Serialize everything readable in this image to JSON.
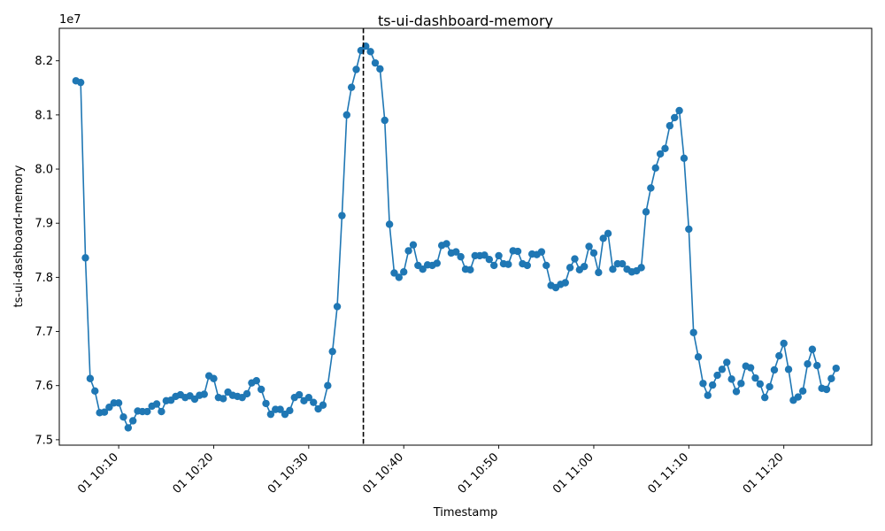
{
  "chart_data": {
    "type": "line",
    "title": "ts-ui-dashboard-memory",
    "xlabel": "Timestamp",
    "ylabel": "ts-ui-dashboard-memory",
    "offset_text": "1e7",
    "x_tick_labels": [
      "01 10:10",
      "01 10:20",
      "01 10:30",
      "01 10:40",
      "01 10:50",
      "01 11:00",
      "01 11:10",
      "01 11:20"
    ],
    "x_start": "10:05:30",
    "x_step_seconds": 30,
    "xlim": [
      "10:03:45",
      "11:29:15"
    ],
    "ylim": [
      7.49,
      8.26
    ],
    "yticks": [
      7.5,
      7.6,
      7.7,
      7.8,
      7.9,
      8.0,
      8.1,
      8.2
    ],
    "vline": "10:35:45",
    "color": "#1f77b4",
    "marker": "circle",
    "grid": false,
    "legend": false,
    "series": [
      {
        "values": [
          8.163,
          8.16,
          7.836,
          7.613,
          7.59,
          7.55,
          7.551,
          7.56,
          7.568,
          7.568,
          7.542,
          7.522,
          7.535,
          7.553,
          7.552,
          7.552,
          7.562,
          7.566,
          7.552,
          7.572,
          7.573,
          7.58,
          7.583,
          7.578,
          7.581,
          7.575,
          7.582,
          7.584,
          7.618,
          7.613,
          7.578,
          7.576,
          7.588,
          7.582,
          7.58,
          7.578,
          7.585,
          7.605,
          7.609,
          7.593,
          7.567,
          7.547,
          7.556,
          7.556,
          7.547,
          7.554,
          7.578,
          7.583,
          7.572,
          7.578,
          7.569,
          7.557,
          7.564,
          7.6,
          7.663,
          7.746,
          7.914,
          8.1,
          8.151,
          8.184,
          8.219,
          8.227,
          8.217,
          8.196,
          8.185,
          8.09,
          7.898,
          7.808,
          7.8,
          7.81,
          7.849,
          7.86,
          7.822,
          7.815,
          7.823,
          7.822,
          7.826,
          7.859,
          7.862,
          7.845,
          7.847,
          7.838,
          7.815,
          7.814,
          7.84,
          7.84,
          7.841,
          7.833,
          7.822,
          7.84,
          7.825,
          7.824,
          7.849,
          7.848,
          7.825,
          7.822,
          7.843,
          7.842,
          7.847,
          7.822,
          7.785,
          7.781,
          7.787,
          7.79,
          7.818,
          7.834,
          7.814,
          7.82,
          7.857,
          7.845,
          7.809,
          7.872,
          7.881,
          7.815,
          7.825,
          7.825,
          7.815,
          7.81,
          7.812,
          7.818,
          7.921,
          7.965,
          8.002,
          8.028,
          8.038,
          8.08,
          8.095,
          8.108,
          8.02,
          7.889,
          7.698,
          7.653,
          7.604,
          7.582,
          7.601,
          7.619,
          7.63,
          7.643,
          7.612,
          7.589,
          7.604,
          7.636,
          7.633,
          7.614,
          7.603,
          7.578,
          7.598,
          7.629,
          7.655,
          7.678,
          7.63,
          7.573,
          7.579,
          7.59,
          7.64,
          7.667,
          7.637,
          7.595,
          7.593,
          7.613,
          7.632
        ]
      }
    ]
  }
}
